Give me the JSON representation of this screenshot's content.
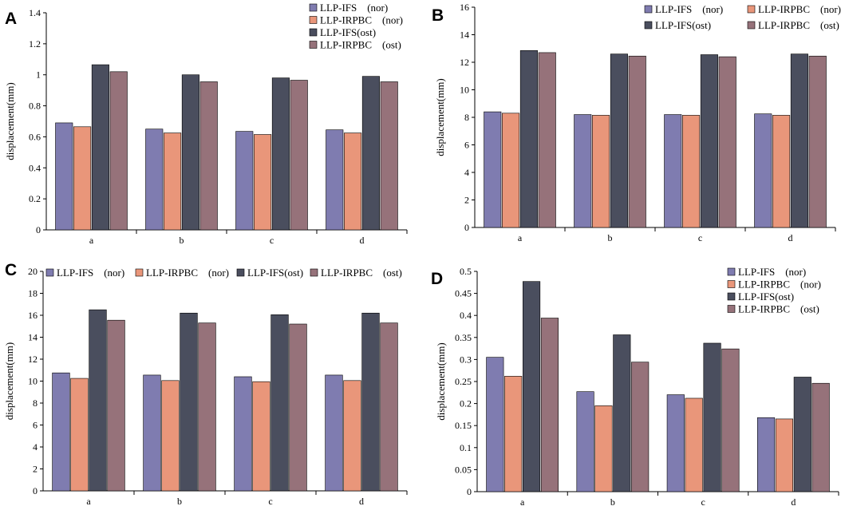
{
  "colors": {
    "LLP-IFS (nor)": "#7f7cb0",
    "LLP-IRPBC (nor)": "#e9967a",
    "LLP-IFS(ost)": "#4a4e5e",
    "LLP-IRPBC (ost)": "#96727a"
  },
  "chart_data": [
    {
      "panel": "A",
      "type": "bar",
      "ylabel": "displacement(mm)",
      "categories": [
        "a",
        "b",
        "c",
        "d"
      ],
      "ylim": [
        0,
        1.4
      ],
      "yticks": [
        "0",
        "0.2",
        "0.4",
        "0.6",
        "0.8",
        "1",
        "1.2",
        "1.4"
      ],
      "legend_position": "top-right",
      "legend_layout": "vertical",
      "legend_labels": [
        "LLP-IFS　(nor)",
        "LLP-IRPBC　(nor)",
        "LLP-IFS(ost)",
        "LLP-IRPBC　(ost)"
      ],
      "series": [
        {
          "name": "LLP-IFS (nor)",
          "values": [
            0.69,
            0.65,
            0.635,
            0.645
          ]
        },
        {
          "name": "LLP-IRPBC (nor)",
          "values": [
            0.665,
            0.625,
            0.615,
            0.625
          ]
        },
        {
          "name": "LLP-IFS(ost)",
          "values": [
            1.065,
            1.0,
            0.98,
            0.99
          ]
        },
        {
          "name": "LLP-IRPBC (ost)",
          "values": [
            1.02,
            0.955,
            0.965,
            0.955
          ]
        }
      ]
    },
    {
      "panel": "B",
      "type": "bar",
      "ylabel": "displacement(mm)",
      "categories": [
        "a",
        "b",
        "c",
        "d"
      ],
      "ylim": [
        0,
        16
      ],
      "yticks": [
        "0",
        "2",
        "4",
        "6",
        "8",
        "10",
        "12",
        "14",
        "16"
      ],
      "legend_position": "top-right",
      "legend_layout": "two-column",
      "legend_labels": [
        "LLP-IFS　(nor)",
        "LLP-IRPBC　(nor)",
        "LLP-IFS(ost)",
        "LLP-IRPBC　(ost)"
      ],
      "series": [
        {
          "name": "LLP-IFS (nor)",
          "values": [
            8.4,
            8.2,
            8.2,
            8.25
          ]
        },
        {
          "name": "LLP-IRPBC (nor)",
          "values": [
            8.3,
            8.15,
            8.15,
            8.15
          ]
        },
        {
          "name": "LLP-IFS(ost)",
          "values": [
            12.85,
            12.6,
            12.55,
            12.6
          ]
        },
        {
          "name": "LLP-IRPBC (ost)",
          "values": [
            12.7,
            12.45,
            12.4,
            12.45
          ]
        }
      ]
    },
    {
      "panel": "C",
      "type": "bar",
      "ylabel": "displacement(mm)",
      "categories": [
        "a",
        "b",
        "c",
        "d"
      ],
      "ylim": [
        0,
        20
      ],
      "yticks": [
        "0",
        "2",
        "4",
        "6",
        "8",
        "10",
        "12",
        "14",
        "16",
        "18",
        "20"
      ],
      "legend_position": "top",
      "legend_layout": "horizontal",
      "legend_labels": [
        "LLP-IFS　(nor)",
        "LLP-IRPBC　(nor)",
        "LLP-IFS(ost)",
        "LLP-IRPBC　(ost)"
      ],
      "series": [
        {
          "name": "LLP-IFS (nor)",
          "values": [
            10.75,
            10.55,
            10.4,
            10.55
          ]
        },
        {
          "name": "LLP-IRPBC (nor)",
          "values": [
            10.25,
            10.05,
            9.95,
            10.05
          ]
        },
        {
          "name": "LLP-IFS(ost)",
          "values": [
            16.5,
            16.2,
            16.05,
            16.2
          ]
        },
        {
          "name": "LLP-IRPBC (ost)",
          "values": [
            15.55,
            15.3,
            15.2,
            15.3
          ]
        }
      ]
    },
    {
      "panel": "D",
      "type": "bar",
      "ylabel": "displacement(mm)",
      "categories": [
        "a",
        "b",
        "c",
        "d"
      ],
      "ylim": [
        0,
        0.5
      ],
      "yticks": [
        "0",
        "0.05",
        "0.1",
        "0.15",
        "0.2",
        "0.25",
        "0.3",
        "0.35",
        "0.4",
        "0.45",
        "0.5"
      ],
      "legend_position": "top-right",
      "legend_layout": "vertical",
      "legend_labels": [
        "LLP-IFS　(nor)",
        "LLP-IRPBC　(nor)",
        "LLP-IFS(ost)",
        "LLP-IRPBC　(ost)"
      ],
      "series": [
        {
          "name": "LLP-IFS (nor)",
          "values": [
            0.305,
            0.227,
            0.22,
            0.168
          ]
        },
        {
          "name": "LLP-IRPBC (nor)",
          "values": [
            0.262,
            0.195,
            0.212,
            0.165
          ]
        },
        {
          "name": "LLP-IFS(ost)",
          "values": [
            0.477,
            0.356,
            0.337,
            0.26
          ]
        },
        {
          "name": "LLP-IRPBC (ost)",
          "values": [
            0.394,
            0.294,
            0.324,
            0.246
          ]
        }
      ]
    }
  ]
}
